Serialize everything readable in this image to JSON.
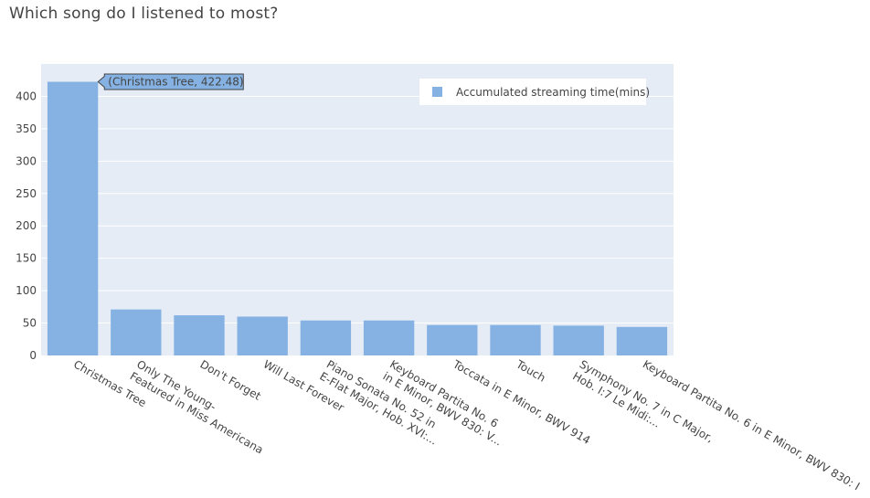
{
  "chart_data": {
    "type": "bar",
    "title": "Which song do I listened to most?",
    "xlabel": "",
    "ylabel": "",
    "ylim": [
      0,
      450
    ],
    "yticks": [
      0,
      50,
      100,
      150,
      200,
      250,
      300,
      350,
      400
    ],
    "grid": true,
    "legend_position": "top-right",
    "bar_color": "#85b2e3",
    "plot_background": "#e5ecf6",
    "categories": [
      [
        "Christmas Tree"
      ],
      [
        "Only The Young-",
        "Featured in Miss Americana"
      ],
      [
        "Don't Forget"
      ],
      [
        "Will Last Forever"
      ],
      [
        "Piano Sonata No. 52 in",
        "E-Flat Major, Hob. XVI:..."
      ],
      [
        "Keyboard Partita No. 6",
        "in E Minor, BWV 830: V..."
      ],
      [
        "Toccata in E Minor, BWV 914"
      ],
      [
        "Touch"
      ],
      [
        "Symphony No. 7 in C Major,",
        "Hob. I:7 Le Midi:..."
      ],
      [
        "Keyboard Partita No. 6 in E Minor, BWV 830: I"
      ]
    ],
    "series": [
      {
        "name": "Accumulated streaming time(mins)",
        "values": [
          422.48,
          71,
          62,
          60,
          54,
          54,
          47,
          47,
          46,
          44
        ]
      }
    ],
    "hover_label": "(Christmas Tree, 422.48)"
  }
}
